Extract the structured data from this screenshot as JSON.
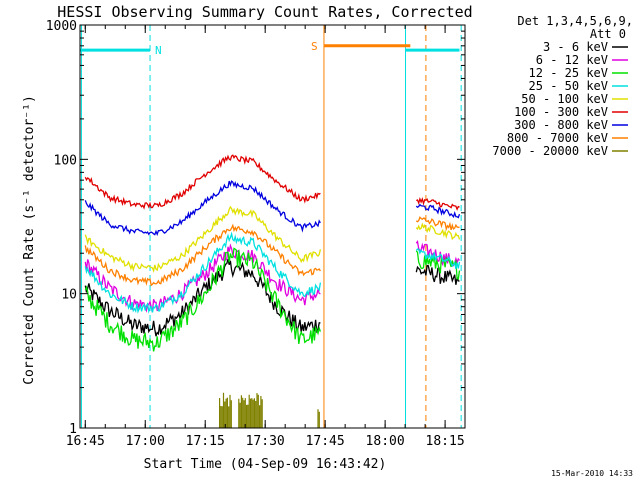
{
  "chart_data": {
    "type": "line",
    "title": "HESSI Observing Summary Count Rates, Corrected",
    "xlabel": "Start Time (04-Sep-09 16:43:42)",
    "ylabel": "Corrected Count Rate (s⁻¹ detector⁻¹)",
    "yscale": "log",
    "ylim": [
      1,
      1000
    ],
    "xlim": [
      16.728,
      18.333
    ],
    "x_ticks": [
      "16:45",
      "17:00",
      "17:15",
      "17:30",
      "17:45",
      "18:00",
      "18:15"
    ],
    "y_ticks": [
      "1",
      "10",
      "100",
      "1000"
    ],
    "legend_header": [
      "Det 1,3,4,5,6,9,",
      "Att 0"
    ],
    "legend_position": "outside-right",
    "timestamp": "15-Mar-2010 14:33",
    "gaps": [
      [
        17.73,
        18.08
      ]
    ],
    "series": [
      {
        "name": "3 - 6 keV",
        "color": "#000000",
        "noise": 0.14,
        "points": [
          [
            16.75,
            11
          ],
          [
            16.85,
            7.5
          ],
          [
            16.95,
            5.8
          ],
          [
            17.05,
            5.5
          ],
          [
            17.15,
            7
          ],
          [
            17.25,
            11
          ],
          [
            17.35,
            16
          ],
          [
            17.45,
            14
          ],
          [
            17.55,
            8
          ],
          [
            17.65,
            5.5
          ],
          [
            17.72,
            6
          ],
          [
            18.13,
            15
          ],
          [
            18.2,
            14
          ],
          [
            18.26,
            13
          ],
          [
            18.31,
            12
          ]
        ]
      },
      {
        "name": "6 - 12 keV",
        "color": "#e000e0",
        "noise": 0.12,
        "points": [
          [
            16.75,
            17
          ],
          [
            16.85,
            11
          ],
          [
            16.95,
            8.5
          ],
          [
            17.05,
            8
          ],
          [
            17.15,
            10
          ],
          [
            17.25,
            14
          ],
          [
            17.35,
            21
          ],
          [
            17.45,
            19
          ],
          [
            17.55,
            12
          ],
          [
            17.65,
            9
          ],
          [
            17.72,
            10
          ],
          [
            18.13,
            22
          ],
          [
            18.2,
            20
          ],
          [
            18.26,
            18
          ],
          [
            18.31,
            17
          ]
        ]
      },
      {
        "name": "12 - 25 keV",
        "color": "#00e000",
        "noise": 0.16,
        "points": [
          [
            16.75,
            10
          ],
          [
            16.85,
            6
          ],
          [
            16.95,
            4.5
          ],
          [
            17.05,
            4.3
          ],
          [
            17.15,
            6
          ],
          [
            17.25,
            10
          ],
          [
            17.35,
            19
          ],
          [
            17.45,
            17
          ],
          [
            17.55,
            8.5
          ],
          [
            17.65,
            4.5
          ],
          [
            17.72,
            5
          ],
          [
            18.13,
            18
          ],
          [
            18.2,
            17
          ],
          [
            18.26,
            16
          ],
          [
            18.31,
            15
          ]
        ]
      },
      {
        "name": "25 - 50 keV",
        "color": "#00e0e0",
        "noise": 0.08,
        "points": [
          [
            16.75,
            16
          ],
          [
            16.85,
            10
          ],
          [
            16.95,
            8
          ],
          [
            17.05,
            7.8
          ],
          [
            17.15,
            10
          ],
          [
            17.25,
            16
          ],
          [
            17.35,
            26
          ],
          [
            17.45,
            24
          ],
          [
            17.55,
            15
          ],
          [
            17.65,
            10
          ],
          [
            17.72,
            11
          ],
          [
            18.13,
            20
          ],
          [
            18.2,
            19
          ],
          [
            18.26,
            17.5
          ],
          [
            18.31,
            16
          ]
        ]
      },
      {
        "name": "50 - 100 keV",
        "color": "#e0e000",
        "noise": 0.06,
        "points": [
          [
            16.75,
            26
          ],
          [
            16.85,
            19
          ],
          [
            16.95,
            16
          ],
          [
            17.05,
            15.5
          ],
          [
            17.15,
            19
          ],
          [
            17.25,
            28
          ],
          [
            17.35,
            42
          ],
          [
            17.45,
            39
          ],
          [
            17.55,
            26
          ],
          [
            17.65,
            18
          ],
          [
            17.72,
            20
          ],
          [
            18.13,
            32
          ],
          [
            18.2,
            30
          ],
          [
            18.26,
            28
          ],
          [
            18.31,
            26
          ]
        ]
      },
      {
        "name": "100 - 300 keV",
        "color": "#e00000",
        "noise": 0.05,
        "points": [
          [
            16.75,
            75
          ],
          [
            16.85,
            52
          ],
          [
            16.95,
            46
          ],
          [
            17.05,
            45
          ],
          [
            17.15,
            55
          ],
          [
            17.25,
            78
          ],
          [
            17.35,
            104
          ],
          [
            17.45,
            96
          ],
          [
            17.55,
            68
          ],
          [
            17.65,
            50
          ],
          [
            17.72,
            54
          ],
          [
            18.13,
            50
          ],
          [
            18.2,
            48
          ],
          [
            18.26,
            45
          ],
          [
            18.31,
            43
          ]
        ]
      },
      {
        "name": "300 - 800 keV",
        "color": "#0000e0",
        "noise": 0.05,
        "points": [
          [
            16.75,
            48
          ],
          [
            16.85,
            33
          ],
          [
            16.95,
            29
          ],
          [
            17.05,
            28
          ],
          [
            17.15,
            34
          ],
          [
            17.25,
            48
          ],
          [
            17.35,
            66
          ],
          [
            17.45,
            61
          ],
          [
            17.55,
            42
          ],
          [
            17.65,
            31
          ],
          [
            17.72,
            33
          ],
          [
            18.13,
            45
          ],
          [
            18.2,
            43
          ],
          [
            18.26,
            40
          ],
          [
            18.31,
            38
          ]
        ]
      },
      {
        "name": "800 - 7000 keV",
        "color": "#ff8000",
        "noise": 0.06,
        "points": [
          [
            16.75,
            22
          ],
          [
            16.85,
            15
          ],
          [
            16.95,
            12.5
          ],
          [
            17.05,
            12
          ],
          [
            17.15,
            15
          ],
          [
            17.25,
            22
          ],
          [
            17.35,
            31
          ],
          [
            17.45,
            29
          ],
          [
            17.55,
            20
          ],
          [
            17.65,
            14
          ],
          [
            17.72,
            15
          ],
          [
            18.13,
            36
          ],
          [
            18.2,
            34
          ],
          [
            18.26,
            32
          ],
          [
            18.31,
            30
          ]
        ]
      },
      {
        "name": "7000 - 20000 keV",
        "color": "#808000",
        "noise": 0,
        "bursts": [
          [
            17.31,
            17.36,
            1.8
          ],
          [
            17.39,
            17.49,
            1.8
          ],
          [
            17.72,
            17.73,
            1.6
          ]
        ]
      }
    ],
    "orbit_bars": [
      {
        "label": "N",
        "color": "#00e0e0",
        "y": 650,
        "x_start": 16.73,
        "x_end": 17.02,
        "x_start2": 18.085,
        "x_end2": 18.31
      },
      {
        "label": "S",
        "color": "#ff8000",
        "y": 700,
        "x_start": 17.745,
        "x_end": 18.105
      }
    ],
    "markers": [
      {
        "kind": "dashed",
        "color": "#00e0e0",
        "x": 17.02
      },
      {
        "kind": "solid",
        "color": "#00e0e0",
        "x": 16.734
      },
      {
        "kind": "solid",
        "color": "#ff8000",
        "x": 17.745
      },
      {
        "kind": "solid",
        "color": "#00e0e0",
        "x": 18.085
      },
      {
        "kind": "dashed",
        "color": "#ff8000",
        "x": 18.17
      },
      {
        "kind": "dashed",
        "color": "#00e0e0",
        "x": 18.317
      }
    ]
  }
}
